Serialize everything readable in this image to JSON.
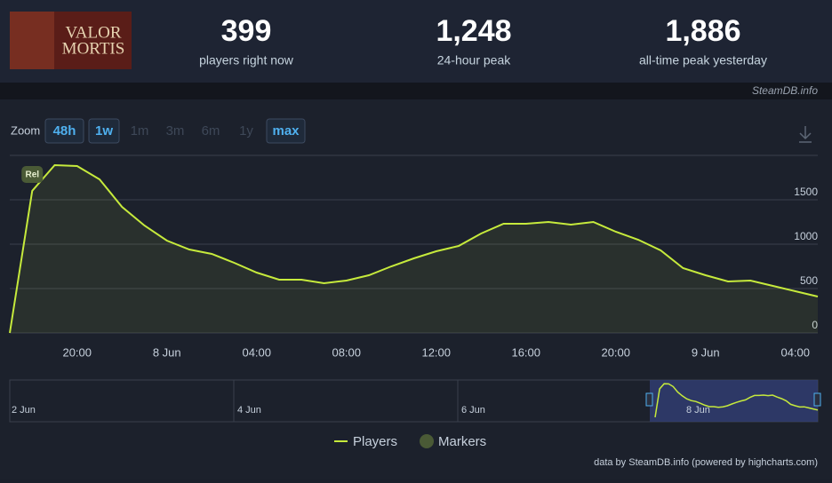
{
  "logo_text": [
    "VALOR",
    "MORTIS"
  ],
  "stats": [
    {
      "value": "399",
      "label": "players right now"
    },
    {
      "value": "1,248",
      "label": "24-hour peak"
    },
    {
      "value": "1,886",
      "label": "all-time peak yesterday"
    }
  ],
  "brand": "SteamDB.info",
  "zoom": {
    "label": "Zoom",
    "buttons": [
      {
        "text": "48h",
        "active": true
      },
      {
        "text": "1w",
        "active": true
      },
      {
        "text": "1m",
        "active": false
      },
      {
        "text": "3m",
        "active": false
      },
      {
        "text": "6m",
        "active": false
      },
      {
        "text": "1y",
        "active": false
      },
      {
        "text": "max",
        "active": true
      }
    ]
  },
  "chart_data": {
    "type": "line",
    "x": [
      17,
      18,
      19,
      20,
      21,
      22,
      23,
      24,
      25,
      26,
      27,
      28,
      29,
      30,
      31,
      32,
      33,
      34,
      35,
      36,
      37,
      38,
      39,
      40,
      41,
      42,
      43,
      44,
      45,
      46,
      47,
      48,
      49,
      50,
      51,
      52,
      53
    ],
    "series": [
      {
        "name": "Players",
        "color": "#c6ea3c",
        "values": [
          0,
          1600,
          1890,
          1880,
          1730,
          1420,
          1210,
          1040,
          940,
          890,
          790,
          680,
          600,
          600,
          560,
          590,
          650,
          750,
          840,
          920,
          980,
          1120,
          1230,
          1230,
          1250,
          1220,
          1250,
          1140,
          1050,
          930,
          730,
          650,
          580,
          590,
          530,
          470,
          410
        ]
      }
    ],
    "markers": {
      "name": "Markers",
      "color": "#4a5a36",
      "points": [
        {
          "x": 18,
          "label": "Rel"
        }
      ]
    },
    "xlim": [
      17,
      53
    ],
    "xticks": [
      {
        "value": 20,
        "label": "20:00"
      },
      {
        "value": 24,
        "label": "8 Jun"
      },
      {
        "value": 28,
        "label": "04:00"
      },
      {
        "value": 32,
        "label": "08:00"
      },
      {
        "value": 36,
        "label": "12:00"
      },
      {
        "value": 40,
        "label": "16:00"
      },
      {
        "value": 44,
        "label": "20:00"
      },
      {
        "value": 48,
        "label": "9 Jun"
      },
      {
        "value": 52,
        "label": "04:00"
      }
    ],
    "ylim": [
      0,
      2000
    ],
    "yticks": [
      0,
      500,
      1000,
      1500
    ],
    "grid": true
  },
  "navigator": {
    "labels": [
      "2 Jun",
      "4 Jun",
      "6 Jun",
      "8 Jun"
    ]
  },
  "credits": "data by SteamDB.info (powered by highcharts.com)"
}
